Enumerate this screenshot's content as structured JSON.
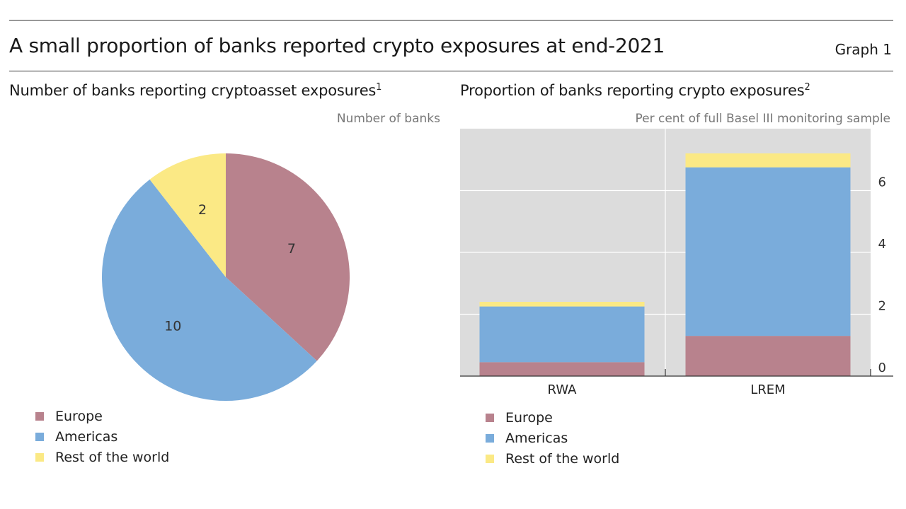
{
  "title": "A small proportion of banks reported crypto exposures at end-2021",
  "graph_label": "Graph 1",
  "colors": {
    "Europe": "#b8828d",
    "Americas": "#7aacdb",
    "Rest of the world": "#fbe985"
  },
  "left_panel": {
    "title": "Number of banks reporting cryptoasset exposures",
    "footnote": "1",
    "unit": "Number of banks",
    "legend": [
      "Europe",
      "Americas",
      "Rest of the world"
    ]
  },
  "right_panel": {
    "title": "Proportion of banks reporting crypto exposures",
    "footnote": "2",
    "unit": "Per cent of full Basel III monitoring sample",
    "legend": [
      "Europe",
      "Americas",
      "Rest of the world"
    ]
  },
  "chart_data": [
    {
      "type": "pie",
      "title": "Number of banks reporting cryptoasset exposures",
      "unit": "Number of banks",
      "slices": [
        {
          "name": "Europe",
          "value": 7
        },
        {
          "name": "Americas",
          "value": 10
        },
        {
          "name": "Rest of the world",
          "value": 2
        }
      ],
      "labels_shown": [
        "7",
        "10",
        "2"
      ]
    },
    {
      "type": "bar",
      "stacked": true,
      "title": "Proportion of banks reporting crypto exposures",
      "ylabel": "Per cent of full Basel III monitoring sample",
      "categories": [
        "RWA",
        "LREM"
      ],
      "series": [
        {
          "name": "Europe",
          "values": [
            0.45,
            1.3
          ]
        },
        {
          "name": "Americas",
          "values": [
            1.8,
            5.45
          ]
        },
        {
          "name": "Rest of the world",
          "values": [
            0.15,
            0.45
          ]
        }
      ],
      "ylim": [
        0,
        8
      ],
      "yticks": [
        0,
        2,
        4,
        6
      ],
      "y_axis_side": "right",
      "grid": true,
      "legend_position": "bottom-left"
    }
  ]
}
